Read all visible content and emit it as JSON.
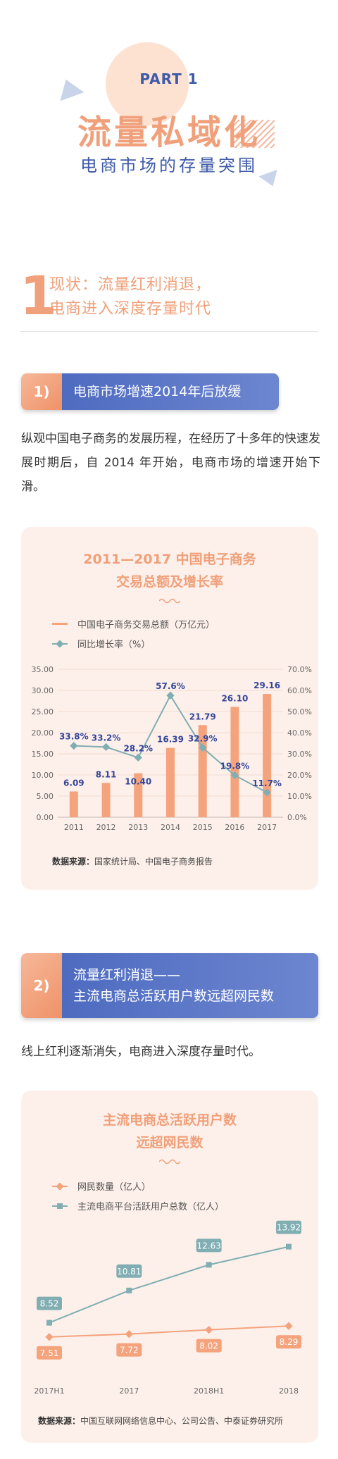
{
  "header": {
    "part": "PART 1",
    "title": "流量私域化",
    "subtitle": "电商市场的存量突围"
  },
  "section1": {
    "number": "1",
    "title_line1": "现状：流量红利消退，",
    "title_line2": "电商进入深度存量时代"
  },
  "sub1": {
    "number": "1)",
    "title": "电商市场增速2014年后放缓",
    "paragraph": "纵观中国电子商务的发展历程，在经历了十多年的快速发展时期后，自 2014 年开始，电商市场的增速开始下滑。"
  },
  "sub2": {
    "number": "2)",
    "title_line1": "流量红利消退——",
    "title_line2": "主流电商总活跃用户数远超网民数",
    "paragraph": "线上红利逐渐消失，电商进入深度存量时代。"
  },
  "chart_data": [
    {
      "type": "bar",
      "title": "2011—2017 中国电子商务",
      "subtitle": "交易总额及增长率",
      "categories": [
        "2011",
        "2012",
        "2013",
        "2014",
        "2015",
        "2016",
        "2017"
      ],
      "series": [
        {
          "name": "中国电子商务交易总额（万亿元）",
          "type": "bar",
          "values": [
            6.09,
            8.11,
            10.4,
            16.39,
            21.79,
            26.1,
            29.16
          ],
          "labels": [
            "6.09",
            "8.11",
            "10.40",
            "16.39",
            "21.79",
            "26.10",
            "29.16"
          ]
        },
        {
          "name": "同比增长率（%）",
          "type": "line",
          "values": [
            33.8,
            33.2,
            28.2,
            57.6,
            32.9,
            19.8,
            11.7
          ],
          "labels": [
            "33.8%",
            "33.2%",
            "28.2%",
            "57.6%",
            "32.9%",
            "19.8%",
            "11.7%"
          ]
        }
      ],
      "ylim": [
        0,
        35
      ],
      "y_ticks": [
        "35.00",
        "30.00",
        "25.00",
        "20.00",
        "15.00",
        "10.00",
        "5.00",
        "0.00"
      ],
      "y2lim": [
        0,
        70
      ],
      "y2_ticks": [
        "70.0%",
        "60.0%",
        "50.0%",
        "40.0%",
        "30.0%",
        "20.0%",
        "10.0%",
        "0.0%"
      ],
      "source_label": "数据来源：",
      "source": "国家统计局、中国电子商务报告",
      "colors": {
        "bar": "#f4a37c",
        "line": "#80aeb2"
      }
    },
    {
      "type": "line",
      "title": "主流电商总活跃用户数",
      "subtitle": "远超网民数",
      "categories": [
        "2017H1",
        "2017",
        "2018H1",
        "2018"
      ],
      "series": [
        {
          "name": "网民数量（亿人）",
          "values": [
            7.51,
            7.72,
            8.02,
            8.29
          ],
          "labels": [
            "7.51",
            "7.72",
            "8.02",
            "8.29"
          ]
        },
        {
          "name": "主流电商平台活跃用户总数（亿人）",
          "values": [
            8.52,
            10.81,
            12.63,
            13.92
          ],
          "labels": [
            "8.52",
            "10.81",
            "12.63",
            "13.92"
          ]
        }
      ],
      "source_label": "数据来源：",
      "source": "中国互联网网络信息中心、公司公告、中泰证券研究所",
      "colors": {
        "netizens": "#f4a37c",
        "users": "#80aeb2"
      }
    }
  ]
}
